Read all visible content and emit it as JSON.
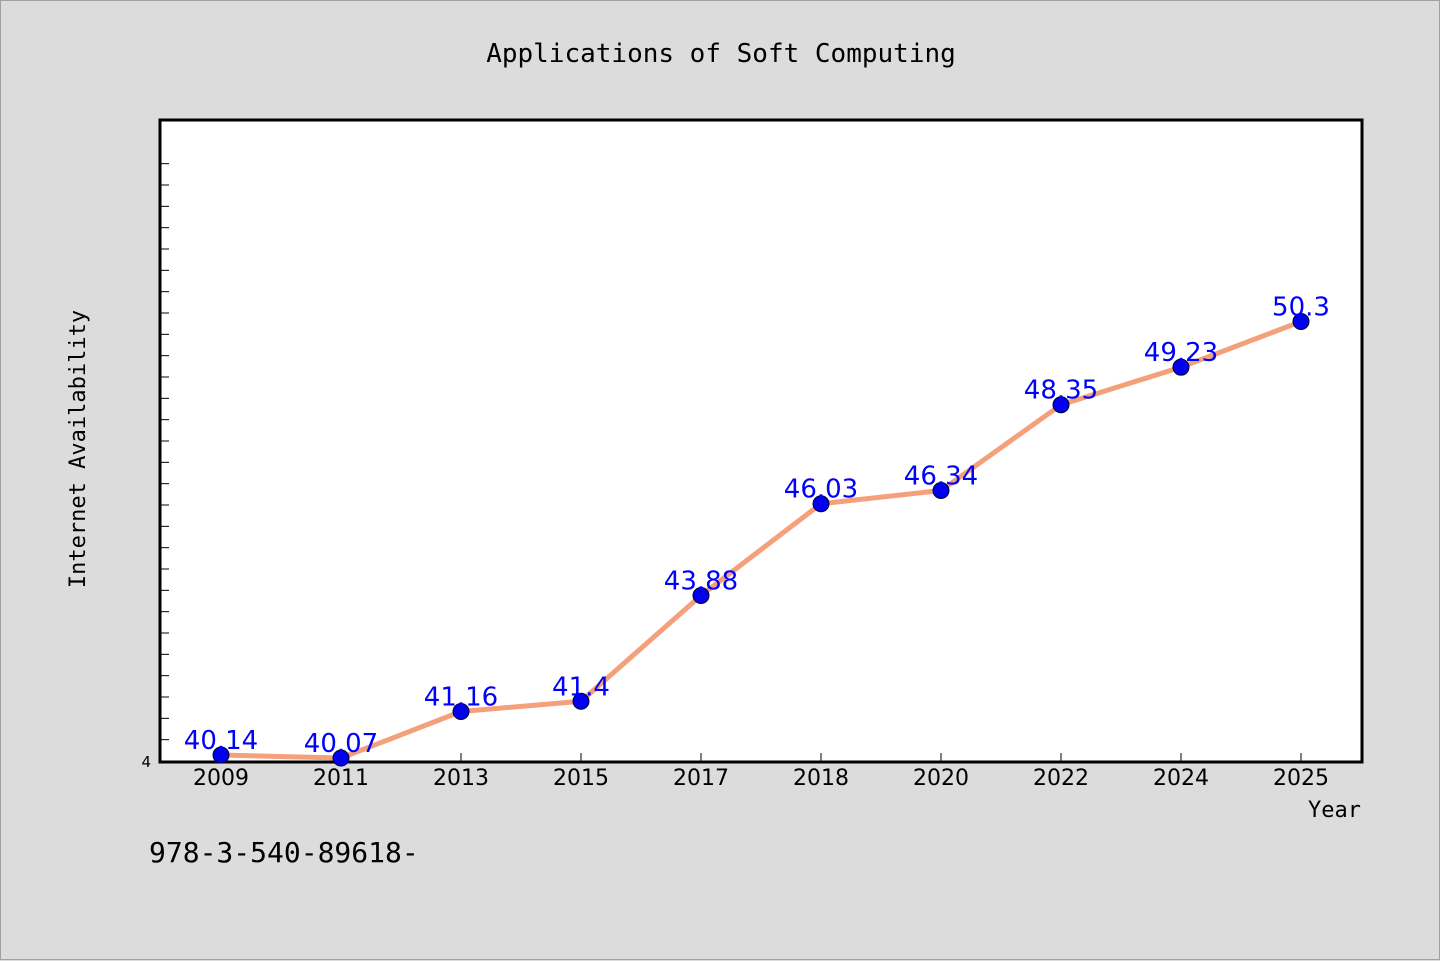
{
  "chart_data": {
    "type": "line",
    "title": "Applications of Soft Computing",
    "xlabel": "Year",
    "ylabel": "Internet Availability",
    "categories": [
      "2009",
      "2011",
      "2013",
      "2015",
      "2017",
      "2018",
      "2020",
      "2022",
      "2024",
      "2025"
    ],
    "values": [
      40.14,
      40.07,
      41.16,
      41.4,
      43.88,
      46.03,
      46.34,
      48.35,
      49.23,
      50.3
    ],
    "data_labels": [
      "40.14",
      "40.07",
      "41.16",
      "41.4",
      "43.88",
      "46.03",
      "46.34",
      "48.35",
      "49.23",
      "50.3"
    ],
    "ylim": [
      40,
      55
    ],
    "yticks_labeled": [
      "4"
    ],
    "grid": false,
    "legend": "none",
    "colors": {
      "line": "#f4a07a",
      "marker": "#0000ee",
      "label": "#0000ff",
      "plot_background": "#ffffff",
      "page_background": "#dcdcdc"
    }
  },
  "footer": {
    "text": "978-3-540-89618-"
  }
}
